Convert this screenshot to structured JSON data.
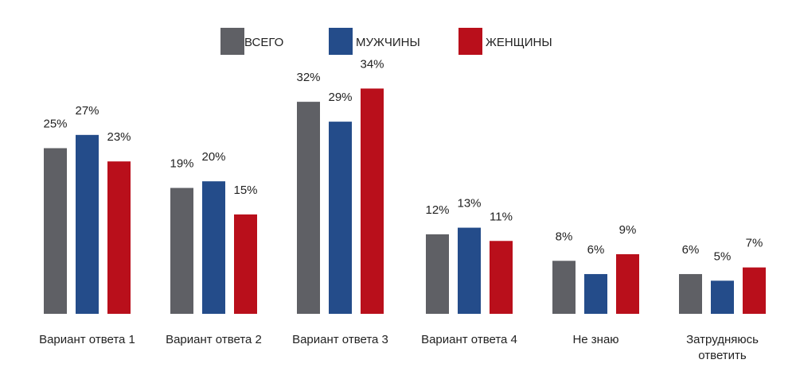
{
  "chart_data": {
    "type": "bar",
    "title": "",
    "xlabel": "",
    "ylabel": "",
    "ylim": [
      0,
      34
    ],
    "grid": false,
    "legend_position": "top-center",
    "categories": [
      [
        "Вариант ответа 1"
      ],
      [
        "Вариант ответа 2"
      ],
      [
        "Вариант ответа 3"
      ],
      [
        "Вариант ответа 4"
      ],
      [
        "Не знаю"
      ],
      [
        "Затрудняюсь",
        "ответить"
      ]
    ],
    "series": [
      {
        "name": "ВСЕГО",
        "color": "#5f6065",
        "values": [
          25,
          19,
          32,
          12,
          8,
          6
        ],
        "labels": [
          "25%",
          "19%",
          "32%",
          "12%",
          "8%",
          "6%"
        ]
      },
      {
        "name": "МУЖЧИНЫ",
        "color": "#244c8a",
        "values": [
          27,
          20,
          29,
          13,
          6,
          5
        ],
        "labels": [
          "27%",
          "20%",
          "29%",
          "13%",
          "6%",
          "5%"
        ]
      },
      {
        "name": "ЖЕНЩИНЫ",
        "color": "#b90f1b",
        "values": [
          23,
          15,
          34,
          11,
          9,
          7
        ],
        "labels": [
          "23%",
          "15%",
          "34%",
          "11%",
          "9%",
          "7%"
        ]
      }
    ]
  }
}
